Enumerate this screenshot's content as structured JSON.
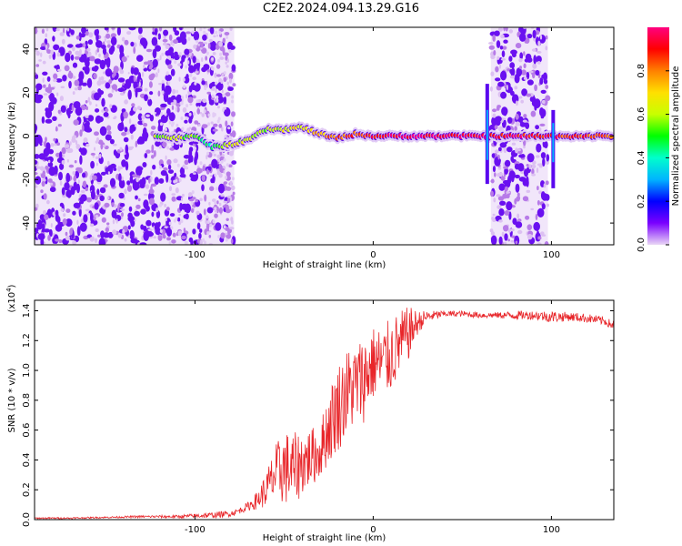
{
  "title": "C2E2.2024.094.13.29.G16",
  "chart_data": [
    {
      "type": "heatmap",
      "xlabel": "Height of straight line (km)",
      "ylabel": "Frequency (Hz)",
      "xlim": [
        -190,
        135
      ],
      "ylim": [
        -50,
        50
      ],
      "x_ticks": [
        -100,
        0,
        100
      ],
      "y_ticks": [
        -40,
        -20,
        0,
        20,
        40
      ],
      "colorbar": {
        "label": "Normalized spectral amplitude",
        "range": [
          0,
          1
        ],
        "ticks": [
          "0.0",
          "0.2",
          "0.4",
          "0.6",
          "0.8"
        ],
        "colormap": [
          "#e9d6f5",
          "#7a00ff",
          "#0000ff",
          "#00b4ff",
          "#00ffcc",
          "#00ff00",
          "#c8ff00",
          "#ffe000",
          "#ff8000",
          "#ff0000",
          "#ff0080"
        ]
      },
      "ridge": [
        {
          "x": -122,
          "y": 0,
          "amp": 0.55
        },
        {
          "x": -110,
          "y": -1,
          "amp": 0.6
        },
        {
          "x": -100,
          "y": 0,
          "amp": 0.55
        },
        {
          "x": -90,
          "y": -5,
          "amp": 0.45
        },
        {
          "x": -80,
          "y": -4,
          "amp": 0.6
        },
        {
          "x": -70,
          "y": -2,
          "amp": 0.65
        },
        {
          "x": -60,
          "y": 3,
          "amp": 0.6
        },
        {
          "x": -50,
          "y": 3,
          "amp": 0.65
        },
        {
          "x": -40,
          "y": 4,
          "amp": 0.65
        },
        {
          "x": -30,
          "y": 1,
          "amp": 0.75
        },
        {
          "x": -20,
          "y": -1,
          "amp": 0.8
        },
        {
          "x": -10,
          "y": 1,
          "amp": 0.85
        },
        {
          "x": 0,
          "y": 0,
          "amp": 0.9
        },
        {
          "x": 20,
          "y": 0,
          "amp": 0.95
        },
        {
          "x": 40,
          "y": 0,
          "amp": 0.95
        },
        {
          "x": 62,
          "y": 0,
          "amp": 0.95
        },
        {
          "x": 102,
          "y": 0,
          "amp": 0.9
        },
        {
          "x": 120,
          "y": 0,
          "amp": 0.85
        },
        {
          "x": 135,
          "y": 0,
          "amp": 0.8
        }
      ],
      "noise_regions": [
        {
          "x": [
            -190,
            -78
          ],
          "density": "high"
        },
        {
          "x": [
            66,
            98
          ],
          "density": "high"
        }
      ]
    },
    {
      "type": "line",
      "xlabel": "Height of straight line (km)",
      "ylabel": "SNR (10 * v/v)",
      "y_multiplier": "(x10",
      "y_multiplier_exp": "4",
      "y_multiplier_close": ")",
      "xlim": [
        -190,
        135
      ],
      "ylim": [
        0,
        1.47
      ],
      "x_ticks": [
        -100,
        0,
        100
      ],
      "y_ticks": [
        "0.0",
        "0.2",
        "0.4",
        "0.6",
        "0.8",
        "1.0",
        "1.2",
        "1.4"
      ],
      "color": "#e8262a",
      "series": [
        {
          "x": [
            -190,
            -170,
            -150,
            -130,
            -110,
            -100,
            -90,
            -80,
            -75,
            -70,
            -65,
            -60,
            -55,
            -50,
            -45,
            -40,
            -35,
            -30,
            -25,
            -20,
            -15,
            -10,
            -5,
            0,
            5,
            10,
            15,
            20,
            25,
            30,
            40,
            50,
            60,
            70,
            80,
            90,
            100,
            110,
            120,
            130,
            135
          ],
          "y": [
            0.01,
            0.01,
            0.015,
            0.02,
            0.02,
            0.025,
            0.03,
            0.04,
            0.06,
            0.09,
            0.13,
            0.2,
            0.3,
            0.35,
            0.33,
            0.38,
            0.42,
            0.45,
            0.62,
            0.75,
            0.85,
            0.9,
            0.95,
            1.05,
            1.05,
            1.1,
            1.18,
            1.25,
            1.32,
            1.36,
            1.38,
            1.38,
            1.37,
            1.37,
            1.37,
            1.37,
            1.36,
            1.36,
            1.35,
            1.33,
            1.3
          ],
          "spread": [
            0.005,
            0.005,
            0.005,
            0.008,
            0.01,
            0.015,
            0.02,
            0.02,
            0.02,
            0.03,
            0.06,
            0.12,
            0.2,
            0.25,
            0.25,
            0.22,
            0.2,
            0.18,
            0.25,
            0.3,
            0.3,
            0.28,
            0.3,
            0.25,
            0.25,
            0.25,
            0.22,
            0.18,
            0.08,
            0.04,
            0.02,
            0.02,
            0.02,
            0.02,
            0.03,
            0.03,
            0.04,
            0.03,
            0.03,
            0.03,
            0.03
          ]
        }
      ]
    }
  ]
}
